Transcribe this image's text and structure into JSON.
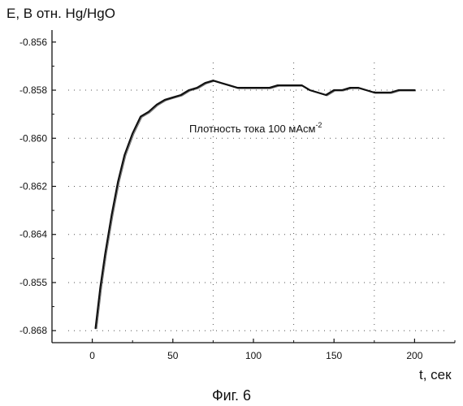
{
  "chart_data": {
    "type": "line",
    "ylabel": "E, В отн. Hg/HgO",
    "xlabel": "t, сек",
    "annotation": "Плотность тока 100 мАсм",
    "annotation_superscript": "-2",
    "caption": "Фиг. 6",
    "xlim": [
      -25,
      225
    ],
    "ylim": [
      -0.8685,
      -0.8555
    ],
    "x_ticks": [
      0,
      50,
      100,
      150,
      200
    ],
    "x_tick_labels": [
      "0",
      "50",
      "100",
      "150",
      "200"
    ],
    "y_ticks": [
      -0.856,
      -0.858,
      -0.86,
      -0.862,
      -0.864,
      -0.866,
      -0.868
    ],
    "y_tick_labels": [
      "-0.856",
      "-0.858",
      "-0.860",
      "-0.862",
      "-0.864",
      "-0.855",
      "-0.868"
    ],
    "grid": "dotted",
    "series": [
      {
        "x": [
          2,
          5,
          8,
          12,
          16,
          20,
          25,
          30,
          35,
          40,
          45,
          50,
          55,
          60,
          65,
          70,
          75,
          80,
          85,
          90,
          95,
          100,
          105,
          110,
          115,
          120,
          125,
          130,
          135,
          140,
          145,
          150,
          155,
          160,
          165,
          170,
          175,
          180,
          185,
          190,
          195,
          200
        ],
        "y": [
          -0.8679,
          -0.8662,
          -0.8648,
          -0.8632,
          -0.8618,
          -0.8607,
          -0.8598,
          -0.8591,
          -0.8589,
          -0.8586,
          -0.8584,
          -0.8583,
          -0.8582,
          -0.858,
          -0.8579,
          -0.8577,
          -0.8576,
          -0.8577,
          -0.8578,
          -0.8579,
          -0.8579,
          -0.8579,
          -0.8579,
          -0.8579,
          -0.8578,
          -0.8578,
          -0.8578,
          -0.8578,
          -0.858,
          -0.8581,
          -0.8582,
          -0.858,
          -0.858,
          -0.8579,
          -0.8579,
          -0.858,
          -0.8581,
          -0.8581,
          -0.8581,
          -0.858,
          -0.858,
          -0.858
        ],
        "color": "#111111"
      }
    ]
  }
}
